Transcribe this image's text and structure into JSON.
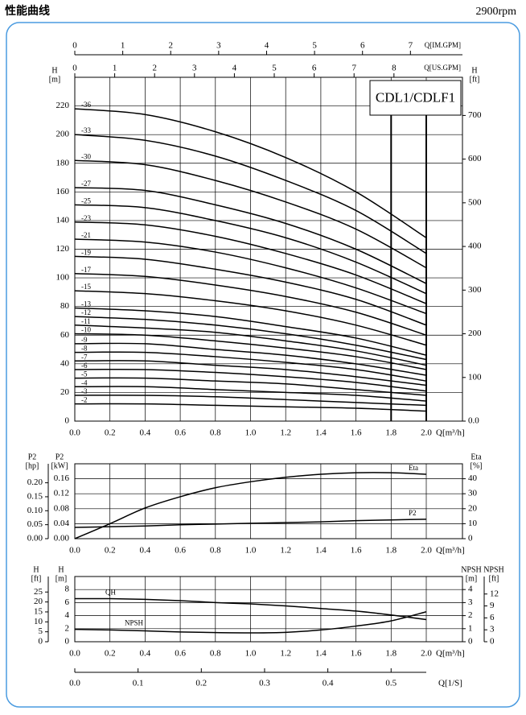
{
  "header": {
    "title": "性能曲线",
    "speed": "2900rpm"
  },
  "chart_data": [
    {
      "type": "line",
      "title": "CDL1/CDLF1",
      "x": [
        0,
        0.4,
        0.8,
        1.2,
        1.6,
        {
          "value": 2,
          "label": "2.0"
        }
      ],
      "xlim": [
        0,
        2
      ],
      "xticks": [
        {
          "value": 0,
          "label": "0.0"
        },
        0.2,
        0.4,
        0.6,
        0.8,
        {
          "value": 1,
          "label": "1.0"
        },
        1.2,
        1.4,
        1.6,
        1.8,
        {
          "value": 2,
          "label": "2.0"
        }
      ],
      "xlabel": "Q[m³/h]",
      "ylabel": [
        "H",
        "[m]"
      ],
      "ylim": [
        0,
        240
      ],
      "yticks": [
        0,
        20,
        40,
        60,
        80,
        100,
        120,
        140,
        160,
        180,
        200,
        220
      ],
      "y2label": [
        "H",
        "[ft]"
      ],
      "y2lim": [
        0,
        787.4
      ],
      "y2ticks": [
        {
          "value": 0,
          "label": "0.0"
        },
        100,
        200,
        300,
        400,
        500,
        600,
        700
      ],
      "top_axes": [
        {
          "label": "Q[IM.GPM]",
          "xlim": [
            0,
            7.33
          ],
          "xticks": [
            0,
            1,
            2,
            3,
            4,
            5,
            6,
            7
          ]
        },
        {
          "label": "Q[US.GPM]",
          "xlim": [
            0,
            8.81
          ],
          "xticks": [
            0,
            1,
            2,
            3,
            4,
            5,
            6,
            7,
            8
          ]
        }
      ],
      "limit_lines": [
        1.8,
        2
      ],
      "grid": true,
      "series": [
        {
          "name": "-36",
          "color": "#000000",
          "values": [
            218,
            214,
            202,
            184,
            160,
            128
          ]
        },
        {
          "name": "-33",
          "color": "#000000",
          "values": [
            200,
            196,
            185,
            168,
            147,
            117
          ]
        },
        {
          "name": "-30",
          "color": "#000000",
          "values": [
            182,
            179,
            168,
            153,
            134,
            107
          ]
        },
        {
          "name": "-27",
          "color": "#000000",
          "values": [
            163,
            161,
            151,
            138,
            120,
            96
          ]
        },
        {
          "name": "-25",
          "color": "#000000",
          "values": [
            151,
            149,
            140,
            128,
            111,
            89
          ]
        },
        {
          "name": "-23",
          "color": "#000000",
          "values": [
            139,
            137,
            129,
            117,
            102,
            82
          ]
        },
        {
          "name": "-21",
          "color": "#000000",
          "values": [
            127,
            125,
            118,
            107,
            93,
            75
          ]
        },
        {
          "name": "-19",
          "color": "#000000",
          "values": [
            115,
            113,
            106,
            97,
            85,
            67
          ]
        },
        {
          "name": "-17",
          "color": "#000000",
          "values": [
            103,
            101,
            95,
            87,
            76,
            60
          ]
        },
        {
          "name": "-15",
          "color": "#000000",
          "values": [
            91,
            89,
            84,
            77,
            67,
            53
          ]
        },
        {
          "name": "-13",
          "color": "#000000",
          "values": [
            79,
            77,
            73,
            66,
            58,
            46
          ]
        },
        {
          "name": "-12",
          "color": "#000000",
          "values": [
            73,
            71,
            67,
            61,
            53,
            43
          ]
        },
        {
          "name": "-11",
          "color": "#000000",
          "values": [
            67,
            65,
            62,
            56,
            49,
            39
          ]
        },
        {
          "name": "-10",
          "color": "#000000",
          "values": [
            61,
            60,
            56,
            51,
            45,
            36
          ]
        },
        {
          "name": "-9",
          "color": "#000000",
          "values": [
            54,
            54,
            50,
            46,
            40,
            32
          ]
        },
        {
          "name": "-8",
          "color": "#000000",
          "values": [
            48,
            48,
            45,
            41,
            36,
            28
          ]
        },
        {
          "name": "-7",
          "color": "#000000",
          "values": [
            42,
            42,
            39,
            36,
            31,
            25
          ]
        },
        {
          "name": "-6",
          "color": "#000000",
          "values": [
            36,
            36,
            34,
            31,
            27,
            21
          ]
        },
        {
          "name": "-5",
          "color": "#000000",
          "values": [
            30,
            30,
            28,
            26,
            22,
            18
          ]
        },
        {
          "name": "-4",
          "color": "#000000",
          "values": [
            24,
            24,
            22,
            20,
            18,
            14
          ]
        },
        {
          "name": "-3",
          "color": "#000000",
          "values": [
            18,
            18,
            17,
            15,
            13,
            11
          ]
        },
        {
          "name": "-2",
          "color": "#000000",
          "values": [
            12,
            12,
            11,
            10,
            9,
            7
          ]
        }
      ]
    },
    {
      "type": "line",
      "x": [
        0,
        0.2,
        0.4,
        0.6,
        0.8,
        1,
        1.2,
        1.4,
        1.6,
        1.8,
        2
      ],
      "xlim": [
        0,
        2
      ],
      "xticks": [
        {
          "value": 0,
          "label": "0.0"
        },
        0.2,
        0.4,
        0.6,
        0.8,
        {
          "value": 1,
          "label": "1.0"
        },
        1.2,
        1.4,
        1.6,
        1.8,
        {
          "value": 2,
          "label": "2.0"
        }
      ],
      "xlabel": "Q[m³/h]",
      "ylabel": [
        "P2",
        "[kW]"
      ],
      "ylim": [
        0,
        0.2
      ],
      "yticks": [
        {
          "value": 0,
          "label": "0.00"
        },
        0.04,
        0.08,
        0.12,
        0.16
      ],
      "y3label": [
        "P2",
        "[hp]"
      ],
      "y3lim": [
        0,
        0.268
      ],
      "y3ticks": [
        {
          "value": 0,
          "label": "0.00"
        },
        0.05,
        {
          "value": 0.1,
          "label": "0.10"
        },
        0.15,
        {
          "value": 0.2,
          "label": "0.20"
        }
      ],
      "y2label": [
        "Eta",
        "[%]"
      ],
      "y2lim": [
        0,
        50
      ],
      "y2ticks": [
        0,
        10,
        20,
        30,
        40
      ],
      "grid": true,
      "series": [
        {
          "name": "Eta",
          "color": "#000000",
          "axis": "y2",
          "values": [
            0,
            10,
            20.5,
            28,
            34,
            38,
            41,
            43,
            44,
            44,
            43
          ]
        },
        {
          "name": "P2",
          "color": "#000000",
          "values": [
            0.03,
            0.032,
            0.034,
            0.037,
            0.039,
            0.041,
            0.043,
            0.045,
            0.048,
            0.05,
            0.052
          ]
        }
      ]
    },
    {
      "type": "line",
      "x": [
        0,
        0.2,
        0.4,
        0.6,
        0.8,
        1,
        1.2,
        1.4,
        1.6,
        1.8,
        2
      ],
      "xlim": [
        0,
        2
      ],
      "xticks": [
        {
          "value": 0,
          "label": "0.0"
        },
        0.2,
        0.4,
        0.6,
        0.8,
        {
          "value": 1,
          "label": "1.0"
        },
        1.2,
        1.4,
        1.6,
        1.8,
        {
          "value": 2,
          "label": "2.0"
        }
      ],
      "xlabel": "Q[m³/h]",
      "x2label": "Q[1/S]",
      "x2lim": [
        0,
        0.5556
      ],
      "x2ticks": [
        {
          "value": 0,
          "label": "0.0"
        },
        0.1,
        0.2,
        0.3,
        0.4,
        0.5
      ],
      "ylabel": [
        "H",
        "[m]"
      ],
      "ylim": [
        0,
        10
      ],
      "yticks": [
        0,
        2,
        4,
        6,
        8
      ],
      "y3label": [
        "H",
        "[ft]"
      ],
      "y3lim": [
        0,
        32.8
      ],
      "y3ticks": [
        0,
        5,
        10,
        15,
        20,
        25
      ],
      "y2label": [
        "NPSH",
        "[m]"
      ],
      "y2lim": [
        0,
        5
      ],
      "y2ticks": [
        0,
        1,
        2,
        3,
        4
      ],
      "y4label": [
        "NPSH",
        "[ft]"
      ],
      "y4lim": [
        0,
        16.4
      ],
      "y4ticks": [
        0,
        3,
        6,
        9,
        12
      ],
      "grid": true,
      "series": [
        {
          "name": "QH",
          "color": "#000000",
          "values": [
            6.6,
            6.6,
            6.5,
            6.3,
            6.0,
            5.8,
            5.5,
            5.1,
            4.7,
            4.1,
            3.4
          ]
        },
        {
          "name": "NPSH",
          "color": "#000000",
          "axis": "y2",
          "values": [
            0.95,
            0.9,
            0.83,
            0.75,
            0.7,
            0.68,
            0.72,
            0.9,
            1.2,
            1.6,
            2.3
          ]
        }
      ]
    }
  ]
}
